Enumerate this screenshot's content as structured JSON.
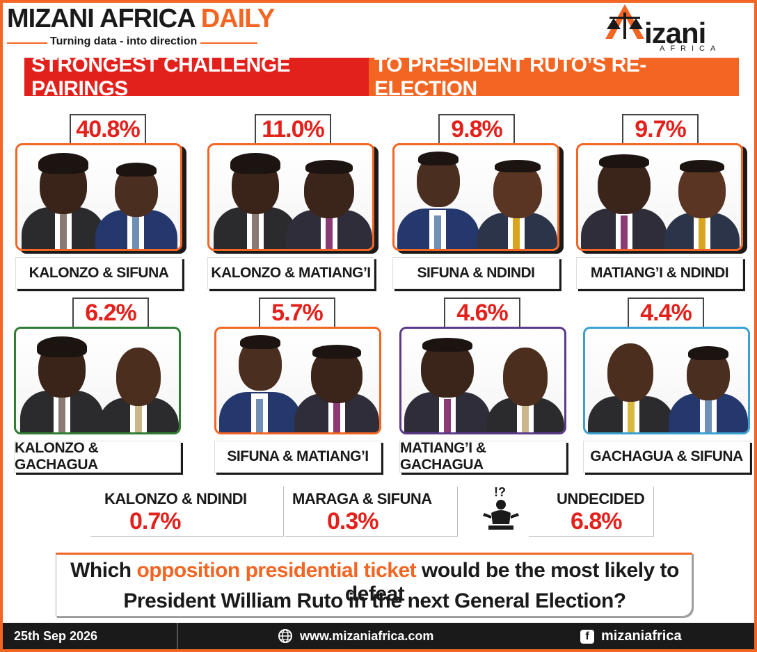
{
  "header": {
    "title_dark": "MIZANI AFRICA",
    "title_accent": "DAILY",
    "tagline": "Turning data - into direction",
    "logo_text": "izani",
    "logo_sub": "AFRICA"
  },
  "banner": {
    "left": "STRONGEST CHALLENGE PAIRINGS",
    "right": "TO PRESIDENT RUTO’S RE-ELECTION"
  },
  "colors": {
    "brand_orange": "#f26522",
    "brand_red": "#e3211c",
    "dark": "#1a1a1a"
  },
  "pairings": [
    {
      "percent": "40.8%",
      "name": "KALONZO & SIFUNA"
    },
    {
      "percent": "11.0%",
      "name": "KALONZO & MATIANG’I"
    },
    {
      "percent": "9.8%",
      "name": "SIFUNA & NDINDI"
    },
    {
      "percent": "9.7%",
      "name": "MATIANG’I & NDINDI"
    },
    {
      "percent": "6.2%",
      "name": "KALONZO & GACHAGUA"
    },
    {
      "percent": "5.7%",
      "name": "SIFUNA & MATIANG’I"
    },
    {
      "percent": "4.6%",
      "name": "MATIANG’I & GACHAGUA"
    },
    {
      "percent": "4.4%",
      "name": "GACHAGUA & SIFUNA"
    }
  ],
  "minor": [
    {
      "name": "KALONZO & NDINDI",
      "percent": "0.7%"
    },
    {
      "name": "MARAGA & SIFUNA",
      "percent": "0.3%"
    },
    {
      "name": "UNDECIDED",
      "percent": "6.8%",
      "icon": "confused-person-icon"
    }
  ],
  "question": {
    "part1": "Which ",
    "highlight": "opposition presidential ticket",
    "part2": " would be the most likely to defeat",
    "line2": "President William Ruto in the next General Election?"
  },
  "footer": {
    "date": "25th Sep 2026",
    "website": "www.mizaniafrica.com",
    "facebook": "mizaniafrica",
    "web_icon": "globe-icon",
    "fb_icon": "facebook-icon"
  }
}
